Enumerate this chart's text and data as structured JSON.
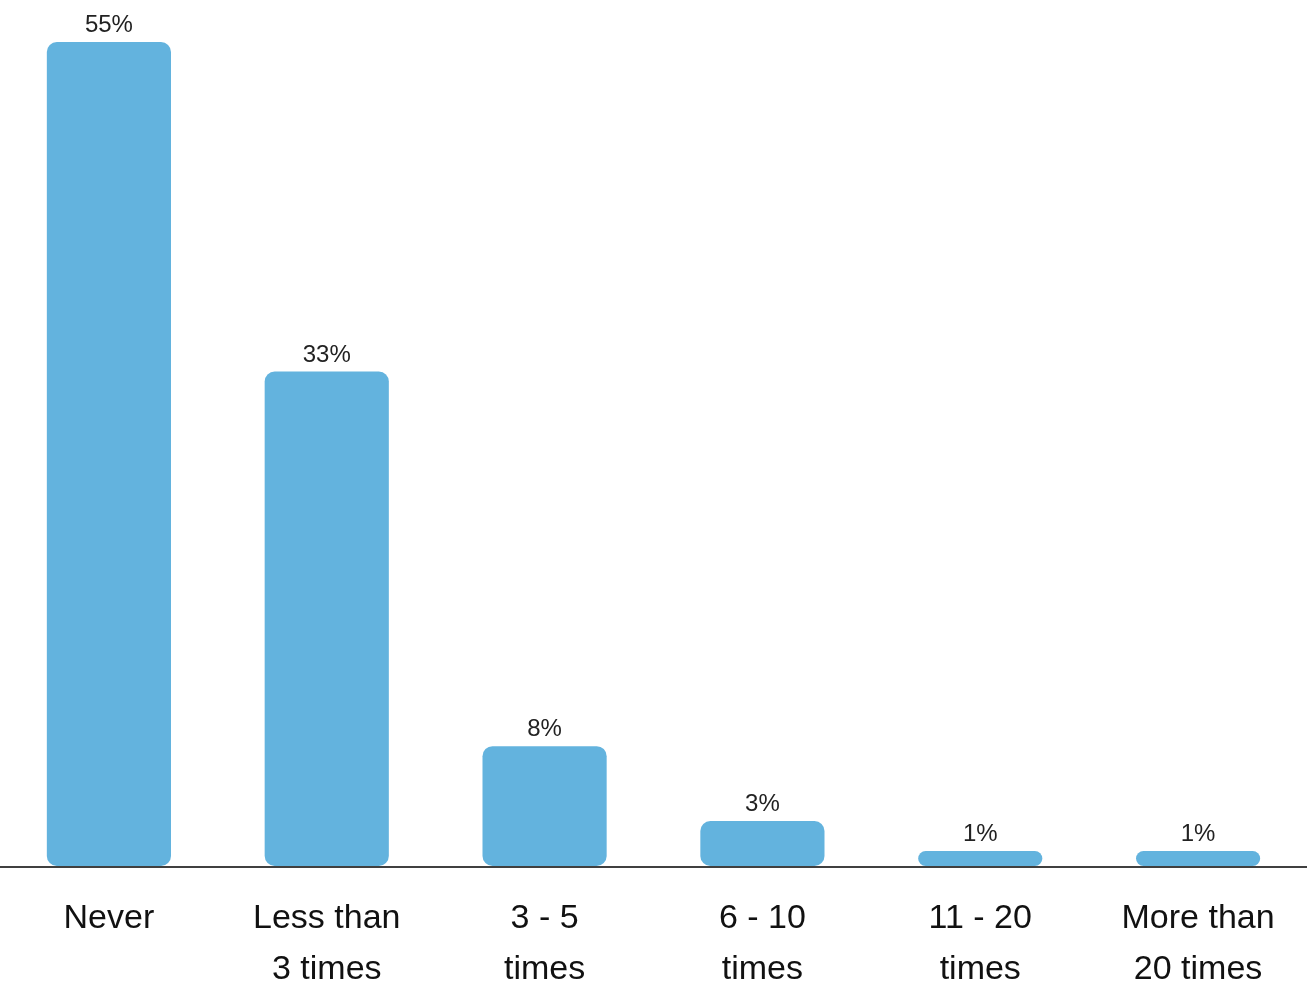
{
  "chart_data": {
    "type": "bar",
    "categories": [
      "Never",
      "Less than 3 times",
      "3 - 5 times",
      "6 - 10 times",
      "11 - 20 times",
      "More than 20 times"
    ],
    "values": [
      55,
      33,
      8,
      3,
      1,
      1
    ],
    "value_labels": [
      "55%",
      "33%",
      "8%",
      "3%",
      "1%",
      "1%"
    ],
    "color": "#63b3de"
  }
}
